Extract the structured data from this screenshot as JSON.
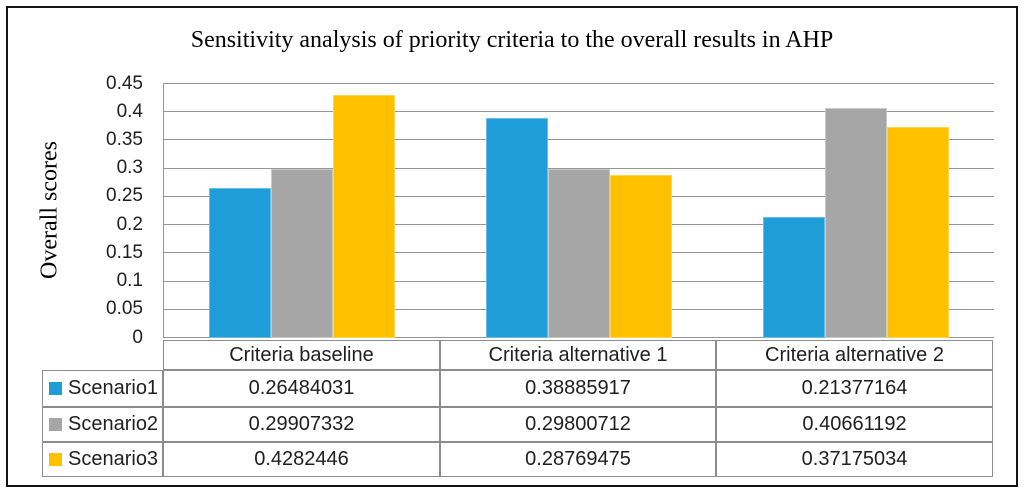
{
  "chart_data": {
    "type": "bar",
    "title": "Sensitivity analysis of priority criteria to the overall results in AHP",
    "xlabel": "",
    "ylabel": "Overall scores",
    "categories": [
      "Criteria baseline",
      "Criteria alternative 1",
      "Criteria alternative 2"
    ],
    "series": [
      {
        "name": "Scenario1",
        "color": "#1f9dd9",
        "edge_color": "#6cbee6",
        "values": [
          0.26484031,
          0.38885917,
          0.21377164
        ],
        "value_labels": [
          "0.26484031",
          "0.38885917",
          "0.21377164"
        ]
      },
      {
        "name": "Scenario2",
        "color": "#a6a6a6",
        "edge_color": "#c9c9c9",
        "values": [
          0.29907332,
          0.29800712,
          0.40661192
        ],
        "value_labels": [
          "0.29907332",
          "0.29800712",
          "0.40661192"
        ]
      },
      {
        "name": "Scenario3",
        "color": "#ffc000",
        "edge_color": "#ffd34d",
        "values": [
          0.4282446,
          0.28769475,
          0.37175034
        ],
        "value_labels": [
          "0.4282446",
          "0.28769475",
          "0.37175034"
        ]
      }
    ],
    "ylim": [
      0,
      0.45
    ],
    "ytick_step": 0.05,
    "ytick_labels": [
      "0.45",
      "0.4",
      "0.35",
      "0.3",
      "0.25",
      "0.2",
      "0.15",
      "0.1",
      "0.05",
      "0"
    ],
    "grid": true,
    "legend_position": "data-table-left-column",
    "data_table_shown": true
  },
  "colors": {
    "grid_line": "#969696",
    "table_border": "#8c8c8c",
    "frame_border": "#141414",
    "text": "#1f1f1f"
  }
}
